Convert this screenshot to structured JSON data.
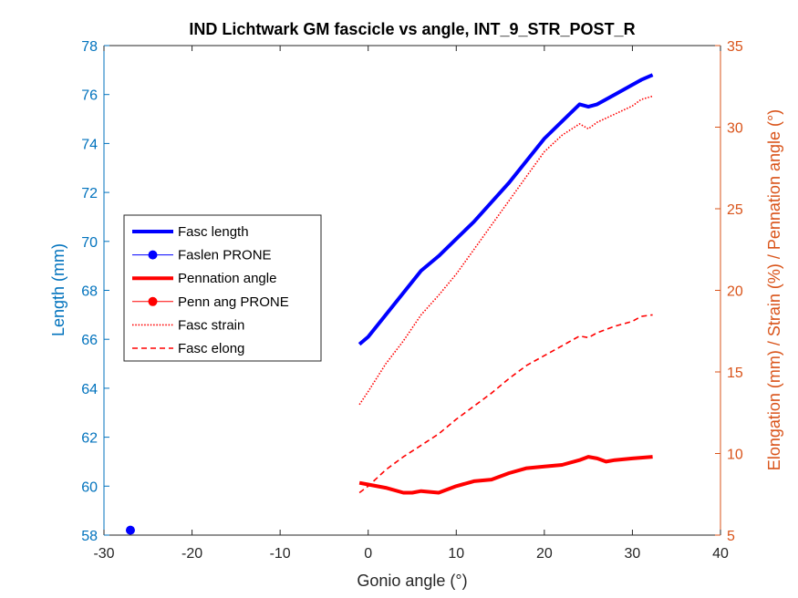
{
  "chart_data": {
    "type": "line",
    "title": "IND Lichtwark GM fascicle vs angle, INT_9_STR_POST_R",
    "xlabel": "Gonio angle (°)",
    "ylabel_left": "Length (mm)",
    "ylabel_right": "Elongation (mm) / Strain (%) / Pennation angle (°)",
    "xlim": [
      -30,
      40
    ],
    "ylim_left": [
      58,
      78
    ],
    "ylim_right": [
      5,
      35
    ],
    "xticks": [
      "-30",
      "-20",
      "-10",
      "0",
      "10",
      "20",
      "30",
      "40"
    ],
    "yticks_left": [
      "58",
      "60",
      "62",
      "64",
      "66",
      "68",
      "70",
      "72",
      "74",
      "76",
      "78"
    ],
    "yticks_right": [
      "5",
      "10",
      "15",
      "20",
      "25",
      "30",
      "35"
    ],
    "grid": false,
    "legend_position": "middle-left",
    "colors": {
      "left_axis": "#0072bd",
      "right_axis": "#d95319",
      "blue_series": "#0000ff",
      "red_series": "#ff0000",
      "axes": "#262626"
    },
    "series": [
      {
        "name": "Fasc length",
        "axis": "left",
        "color": "#0000ff",
        "style": "solid-thick",
        "x": [
          -1,
          0,
          2,
          4,
          6,
          8,
          10,
          12,
          14,
          16,
          18,
          20,
          22,
          24,
          25,
          26,
          28,
          30,
          31,
          32.3
        ],
        "y": [
          65.8,
          66.1,
          67.0,
          67.9,
          68.8,
          69.4,
          70.1,
          70.8,
          71.6,
          72.4,
          73.3,
          74.2,
          74.9,
          75.6,
          75.5,
          75.6,
          76.0,
          76.4,
          76.6,
          76.8
        ]
      },
      {
        "name": "Faslen PRONE",
        "axis": "left",
        "color": "#0000ff",
        "style": "marker",
        "x": [
          -27
        ],
        "y": [
          58.2
        ]
      },
      {
        "name": "Pennation angle",
        "axis": "right",
        "color": "#ff0000",
        "style": "solid-thick",
        "x": [
          -1,
          0,
          2,
          4,
          5,
          6,
          8,
          10,
          12,
          14,
          16,
          18,
          20,
          22,
          24,
          25,
          26,
          27,
          28,
          30,
          32.3
        ],
        "y": [
          8.2,
          8.1,
          7.9,
          7.6,
          7.6,
          7.7,
          7.6,
          8.0,
          8.3,
          8.4,
          8.8,
          9.1,
          9.2,
          9.3,
          9.6,
          9.8,
          9.7,
          9.5,
          9.6,
          9.7,
          9.8
        ]
      },
      {
        "name": "Penn ang PRONE",
        "axis": "right",
        "color": "#ff0000",
        "style": "marker",
        "x": [],
        "y": []
      },
      {
        "name": "Fasc strain",
        "axis": "right",
        "color": "#ff0000",
        "style": "dotted",
        "x": [
          -1,
          0,
          2,
          4,
          6,
          8,
          10,
          12,
          14,
          16,
          18,
          20,
          22,
          24,
          25,
          26,
          28,
          30,
          31,
          32.3
        ],
        "y": [
          13.0,
          13.8,
          15.5,
          16.9,
          18.5,
          19.7,
          21.0,
          22.5,
          24.0,
          25.5,
          27.0,
          28.5,
          29.5,
          30.2,
          29.9,
          30.3,
          30.8,
          31.3,
          31.7,
          31.9
        ]
      },
      {
        "name": "Fasc elong",
        "axis": "right",
        "color": "#ff0000",
        "style": "dashed",
        "x": [
          -1,
          0,
          2,
          4,
          6,
          8,
          10,
          12,
          14,
          16,
          18,
          20,
          22,
          24,
          25,
          26,
          28,
          30,
          31,
          32.3
        ],
        "y": [
          7.6,
          8.0,
          9.0,
          9.8,
          10.5,
          11.2,
          12.1,
          12.9,
          13.7,
          14.6,
          15.4,
          16.0,
          16.6,
          17.2,
          17.1,
          17.4,
          17.8,
          18.1,
          18.4,
          18.5
        ]
      }
    ]
  }
}
